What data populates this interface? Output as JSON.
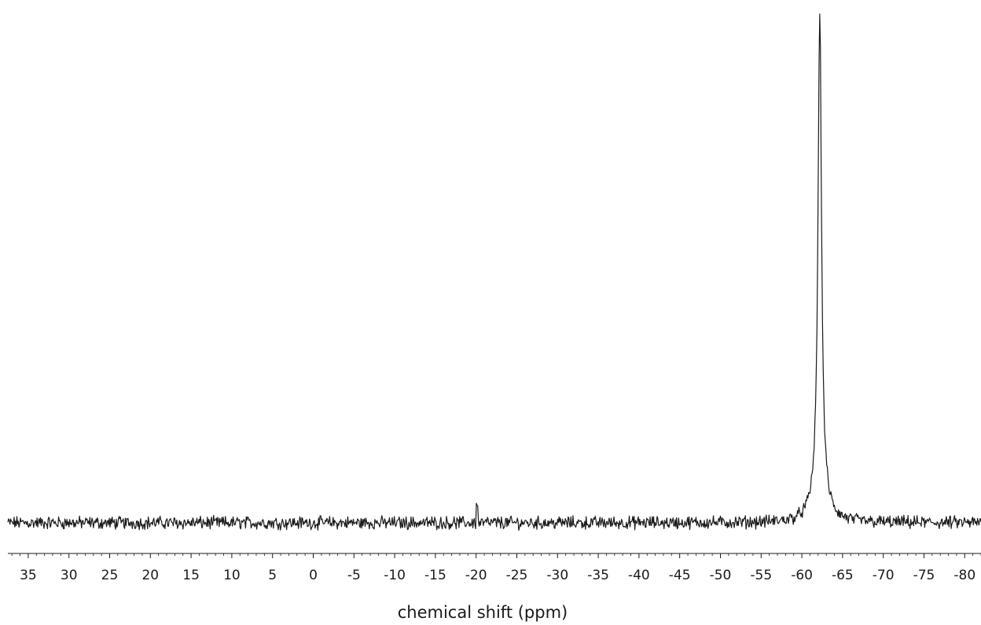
{
  "chart_data": {
    "type": "line",
    "title": "",
    "xlabel": "chemical shift (ppm)",
    "ylabel": "",
    "x_reversed": true,
    "xlim": [
      37.5,
      -82
    ],
    "ylim": [
      -0.02,
      1.0
    ],
    "x_ticks": [
      35,
      30,
      25,
      20,
      15,
      10,
      5,
      0,
      -5,
      -10,
      -15,
      -20,
      -25,
      -30,
      -35,
      -40,
      -45,
      -50,
      -55,
      -60,
      -65,
      -70,
      -75,
      -80
    ],
    "x_tick_labels": [
      "35",
      "30",
      "25",
      "20",
      "15",
      "10",
      "5",
      "0",
      "-5",
      "-10",
      "-15",
      "-20",
      "-25",
      "-30",
      "-35",
      "-40",
      "-45",
      "-50",
      "-55",
      "-60",
      "-65",
      "-70",
      "-75",
      "-80"
    ],
    "grid": false,
    "legend": "none",
    "line_color": "#1a1a1a",
    "baseline_noise_amplitude": 0.01,
    "series": [
      {
        "peaks": [
          {
            "x": -62.2,
            "y": 1.0
          },
          {
            "x": -20.1,
            "y": 0.032
          }
        ]
      }
    ]
  }
}
